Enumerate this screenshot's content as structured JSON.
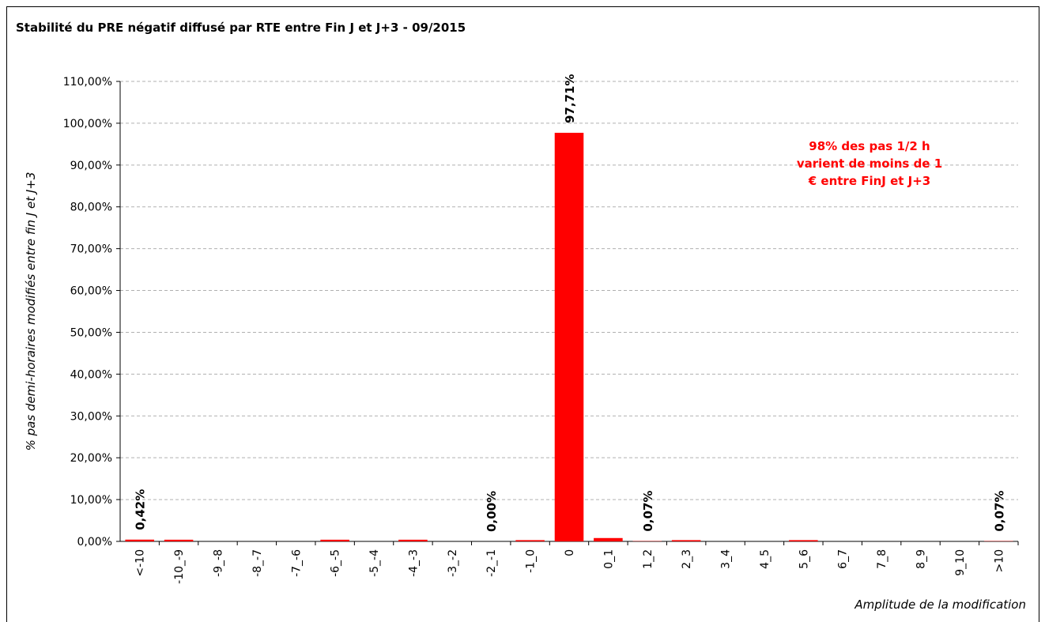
{
  "chart_data": {
    "type": "bar",
    "title": "Stabilité du PRE négatif diffusé par RTE entre Fin J et J+3 - 09/2015",
    "x_label": "Amplitude de la modification",
    "y_label": "% pas demi-horaires modifiés entre fin J et J+3",
    "annotation": "98% des pas 1/2 h varient de moins de 1 € entre FinJ et J+3",
    "categories": [
      "<-10",
      "-10_-9",
      "-9_-8",
      "-8_-7",
      "-7_-6",
      "-6_-5",
      "-5_-4",
      "-4_-3",
      "-3_-2",
      "-2_-1",
      "-1_0",
      "0",
      "0_1",
      "1_2",
      "2_3",
      "3_4",
      "4_5",
      "5_6",
      "6_7",
      "7_8",
      "8_9",
      "9_10",
      ">10"
    ],
    "values": [
      0.42,
      0.4,
      0,
      0,
      0,
      0.4,
      0,
      0.4,
      0,
      0.0,
      0.3,
      97.71,
      0.8,
      0.07,
      0.3,
      0,
      0,
      0.3,
      0,
      0,
      0,
      0,
      0.07
    ],
    "value_labels": [
      "0,42%",
      null,
      null,
      null,
      null,
      null,
      null,
      null,
      null,
      "0,00%",
      null,
      "97,71%",
      null,
      "0,07%",
      null,
      null,
      null,
      null,
      null,
      null,
      null,
      null,
      "0,07%"
    ],
    "color": "#ff0000",
    "ylim": [
      0,
      110
    ],
    "yticks": [
      {
        "value": 0,
        "label": "0,00%"
      },
      {
        "value": 10,
        "label": "10,00%"
      },
      {
        "value": 20,
        "label": "20,00%"
      },
      {
        "value": 30,
        "label": "30,00%"
      },
      {
        "value": 40,
        "label": "40,00%"
      },
      {
        "value": 50,
        "label": "50,00%"
      },
      {
        "value": 60,
        "label": "60,00%"
      },
      {
        "value": 70,
        "label": "70,00%"
      },
      {
        "value": 80,
        "label": "80,00%"
      },
      {
        "value": 90,
        "label": "90,00%"
      },
      {
        "value": 100,
        "label": "100,00%"
      },
      {
        "value": 110,
        "label": "110,00%"
      }
    ],
    "grid": true
  }
}
